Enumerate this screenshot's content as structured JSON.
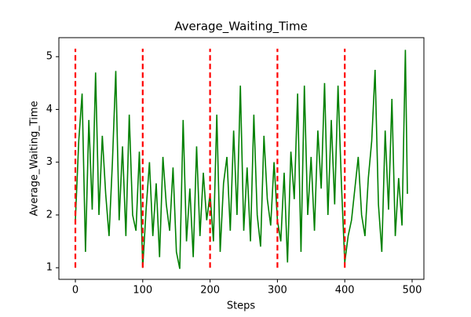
{
  "chart_data": {
    "type": "line",
    "title": "Average_Waiting_Time",
    "xlabel": "Steps",
    "ylabel": "Average_Waiting_Time",
    "x": [
      0,
      5,
      10,
      15,
      20,
      25,
      30,
      35,
      40,
      45,
      50,
      55,
      60,
      65,
      70,
      75,
      80,
      85,
      90,
      95,
      100,
      105,
      110,
      115,
      120,
      125,
      130,
      135,
      140,
      145,
      150,
      155,
      160,
      165,
      170,
      175,
      180,
      185,
      190,
      195,
      200,
      205,
      210,
      215,
      220,
      225,
      230,
      235,
      240,
      245,
      250,
      255,
      260,
      265,
      270,
      275,
      280,
      285,
      290,
      295,
      300,
      305,
      310,
      315,
      320,
      325,
      330,
      335,
      340,
      345,
      350,
      355,
      360,
      365,
      370,
      375,
      380,
      385,
      390,
      395,
      400,
      405,
      410,
      415,
      420,
      425,
      430,
      435,
      440,
      445,
      450,
      455,
      460,
      465,
      470,
      475,
      480,
      485,
      490,
      493
    ],
    "series": [
      {
        "name": "Average_Waiting_Time",
        "color": "green",
        "values": [
          1.9,
          3.4,
          4.3,
          1.3,
          3.8,
          2.1,
          4.7,
          2.0,
          3.5,
          2.4,
          1.6,
          3.0,
          4.73,
          1.9,
          3.3,
          1.6,
          3.9,
          2.0,
          1.7,
          3.2,
          1.0,
          2.1,
          3.0,
          1.6,
          2.6,
          1.2,
          3.1,
          2.2,
          1.7,
          2.9,
          1.3,
          0.98,
          3.8,
          1.5,
          2.5,
          1.2,
          3.3,
          1.6,
          2.8,
          1.9,
          2.4,
          1.5,
          3.9,
          1.3,
          2.6,
          3.1,
          1.7,
          3.6,
          2.0,
          4.45,
          1.7,
          2.9,
          1.5,
          3.9,
          2.0,
          1.4,
          3.5,
          2.3,
          1.8,
          3.0,
          1.9,
          1.5,
          2.8,
          1.1,
          3.2,
          2.3,
          4.3,
          1.3,
          4.45,
          2.0,
          3.1,
          1.7,
          3.6,
          2.5,
          4.5,
          2.0,
          3.8,
          2.2,
          4.45,
          2.6,
          1.1,
          1.6,
          1.9,
          2.5,
          3.1,
          2.0,
          1.6,
          2.7,
          3.4,
          4.75,
          2.2,
          1.3,
          3.6,
          2.1,
          4.2,
          1.6,
          2.7,
          1.8,
          5.13,
          2.4
        ]
      }
    ],
    "vlines": {
      "x": [
        0,
        100,
        200,
        300,
        400
      ],
      "ymin": 1,
      "ymax": 5.15,
      "color": "red"
    },
    "xlim": [
      -24.5,
      517.5
    ],
    "ylim": [
      0.78,
      5.36
    ],
    "xticks": [
      0,
      100,
      200,
      300,
      400,
      500
    ],
    "yticks": [
      1,
      2,
      3,
      4,
      5
    ]
  }
}
